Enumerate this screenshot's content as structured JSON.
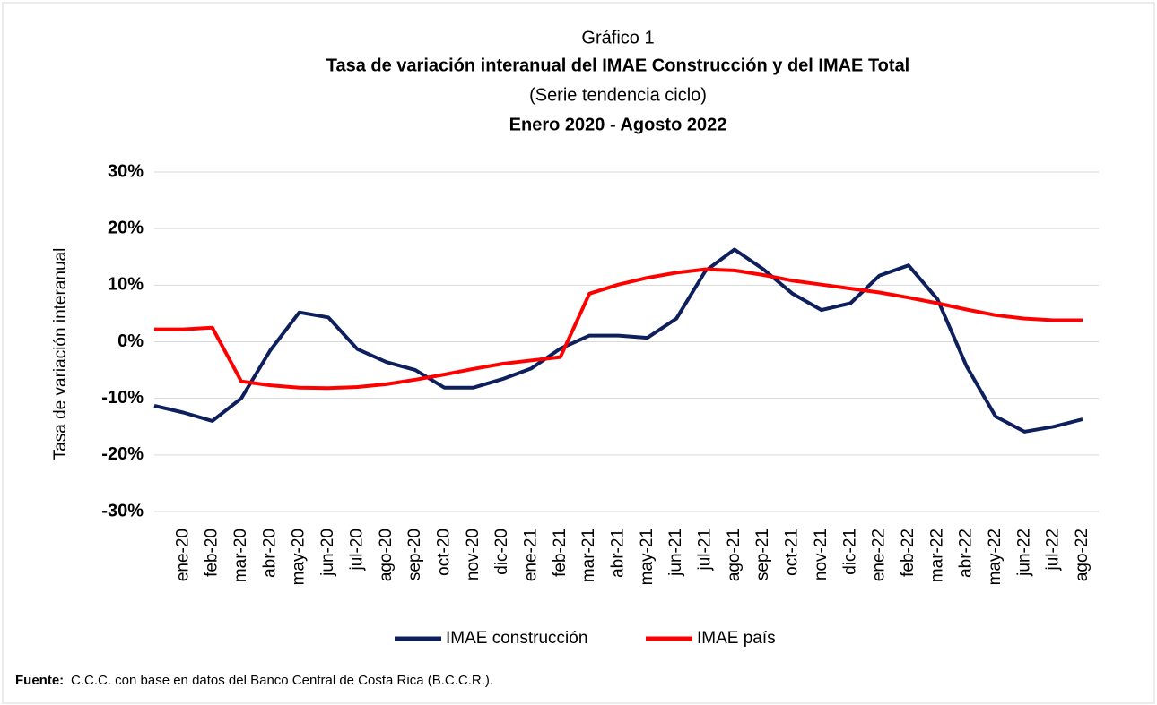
{
  "chart_data": {
    "type": "line",
    "title": "Gráfico 1",
    "subtitle_bold": "Tasa de variación interanual del IMAE Construcción y del IMAE Total",
    "subtitle": "(Serie tendencia ciclo)",
    "period": "Enero 2020 - Agosto 2022",
    "y_label": "Tasa de variación interanual",
    "source_label": "Fuente:",
    "source": "C.C.C. con base en datos del Banco Central de Costa Rica (B.C.C.R.).",
    "categories": [
      null,
      "ene-20",
      "feb-20",
      "mar-20",
      "abr-20",
      "may-20",
      "jun-20",
      "jul-20",
      "ago-20",
      "sep-20",
      "oct-20",
      "nov-20",
      "dic-20",
      "ene-21",
      "feb-21",
      "mar-21",
      "abr-21",
      "may-21",
      "jun-21",
      "jul-21",
      "ago-21",
      "sep-21",
      "oct-21",
      "nov-21",
      "dic-21",
      "ene-22",
      "feb-22",
      "mar-22",
      "abr-22",
      "may-22",
      "jun-22",
      "jul-22",
      "ago-22"
    ],
    "series": [
      {
        "name": "IMAE construcción",
        "color": "#0d1f5c",
        "values": [
          -11.3,
          -12.5,
          -14.0,
          -10.0,
          -1.5,
          5.2,
          4.3,
          -1.3,
          -3.6,
          -5.0,
          -8.1,
          -8.1,
          -6.6,
          -4.7,
          -1.2,
          1.1,
          1.1,
          0.7,
          4.1,
          12.5,
          16.3,
          12.8,
          8.5,
          5.6,
          6.8,
          11.7,
          13.5,
          7.5,
          -4.3,
          -13.2,
          -15.9,
          -15.0,
          -13.7
        ]
      },
      {
        "name": "IMAE país",
        "color": "#ff0000",
        "values": [
          2.2,
          2.2,
          2.5,
          -7.0,
          -7.7,
          -8.1,
          -8.2,
          -8.0,
          -7.5,
          -6.7,
          -5.8,
          -4.8,
          -3.9,
          -3.3,
          -2.7,
          8.5,
          10.1,
          11.3,
          12.2,
          12.8,
          12.6,
          11.8,
          10.8,
          10.1,
          9.4,
          8.7,
          7.8,
          6.8,
          5.7,
          4.7,
          4.1,
          3.8,
          3.8
        ]
      }
    ],
    "ylim": [
      -30,
      30
    ],
    "yticks": [
      {
        "value": -30,
        "label": "-30%"
      },
      {
        "value": -20,
        "label": "-20%"
      },
      {
        "value": -10,
        "label": "-10%"
      },
      {
        "value": 0,
        "label": "0%"
      },
      {
        "value": 10,
        "label": "10%"
      },
      {
        "value": 20,
        "label": "20%"
      },
      {
        "value": 30,
        "label": "30%"
      }
    ],
    "grid": true,
    "legend": "bottom"
  }
}
